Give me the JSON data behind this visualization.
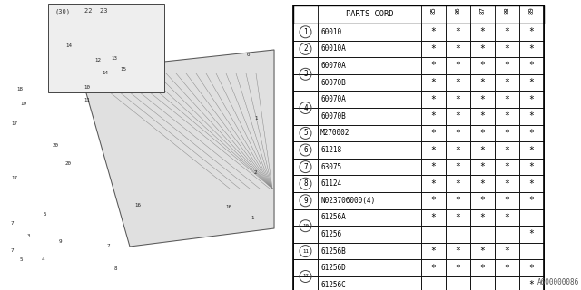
{
  "watermark": "A600000086",
  "table_rows": [
    {
      "num": "1",
      "part": "60010",
      "85": "*",
      "86": "*",
      "87": "*",
      "88": "*",
      "89": "*"
    },
    {
      "num": "2",
      "part": "60010A",
      "85": "*",
      "86": "*",
      "87": "*",
      "88": "*",
      "89": "*"
    },
    {
      "num": "3",
      "part": "60070A",
      "85": "*",
      "86": "*",
      "87": "*",
      "88": "*",
      "89": "*"
    },
    {
      "num": "",
      "part": "60070B",
      "85": "*",
      "86": "*",
      "87": "*",
      "88": "*",
      "89": "*"
    },
    {
      "num": "4",
      "part": "60070A",
      "85": "*",
      "86": "*",
      "87": "*",
      "88": "*",
      "89": "*"
    },
    {
      "num": "",
      "part": "60070B",
      "85": "*",
      "86": "*",
      "87": "*",
      "88": "*",
      "89": "*"
    },
    {
      "num": "5",
      "part": "M270002",
      "85": "*",
      "86": "*",
      "87": "*",
      "88": "*",
      "89": "*"
    },
    {
      "num": "6",
      "part": "61218",
      "85": "*",
      "86": "*",
      "87": "*",
      "88": "*",
      "89": "*"
    },
    {
      "num": "7",
      "part": "63075",
      "85": "*",
      "86": "*",
      "87": "*",
      "88": "*",
      "89": "*"
    },
    {
      "num": "8",
      "part": "61124",
      "85": "*",
      "86": "*",
      "87": "*",
      "88": "*",
      "89": "*"
    },
    {
      "num": "9",
      "part": "N023706000(4)",
      "85": "*",
      "86": "*",
      "87": "*",
      "88": "*",
      "89": "*"
    },
    {
      "num": "10",
      "part": "61256A",
      "85": "*",
      "86": "*",
      "87": "*",
      "88": "*",
      "89": ""
    },
    {
      "num": "",
      "part": "61256",
      "85": "",
      "86": "",
      "87": "",
      "88": "",
      "89": "*"
    },
    {
      "num": "11",
      "part": "61256B",
      "85": "*",
      "86": "*",
      "87": "*",
      "88": "*",
      "89": ""
    },
    {
      "num": "12",
      "part": "61256D",
      "85": "*",
      "86": "*",
      "87": "*",
      "88": "*",
      "89": "*"
    },
    {
      "num": "",
      "part": "61256C",
      "85": "",
      "86": "",
      "87": "",
      "88": "",
      "89": "*"
    }
  ],
  "groups": [
    {
      "label": "1",
      "rows": [
        0
      ]
    },
    {
      "label": "2",
      "rows": [
        1
      ]
    },
    {
      "label": "3",
      "rows": [
        2,
        3
      ]
    },
    {
      "label": "4",
      "rows": [
        4,
        5
      ]
    },
    {
      "label": "5",
      "rows": [
        6
      ]
    },
    {
      "label": "6",
      "rows": [
        7
      ]
    },
    {
      "label": "7",
      "rows": [
        8
      ]
    },
    {
      "label": "8",
      "rows": [
        9
      ]
    },
    {
      "label": "9",
      "rows": [
        10
      ]
    },
    {
      "label": "10",
      "rows": [
        11,
        12
      ]
    },
    {
      "label": "11",
      "rows": [
        13
      ]
    },
    {
      "label": "12",
      "rows": [
        14,
        15
      ]
    }
  ],
  "year_cols": [
    "85",
    "86",
    "87",
    "88",
    "89"
  ],
  "bg_color": "#ffffff",
  "line_color": "#000000",
  "text_color": "#000000"
}
